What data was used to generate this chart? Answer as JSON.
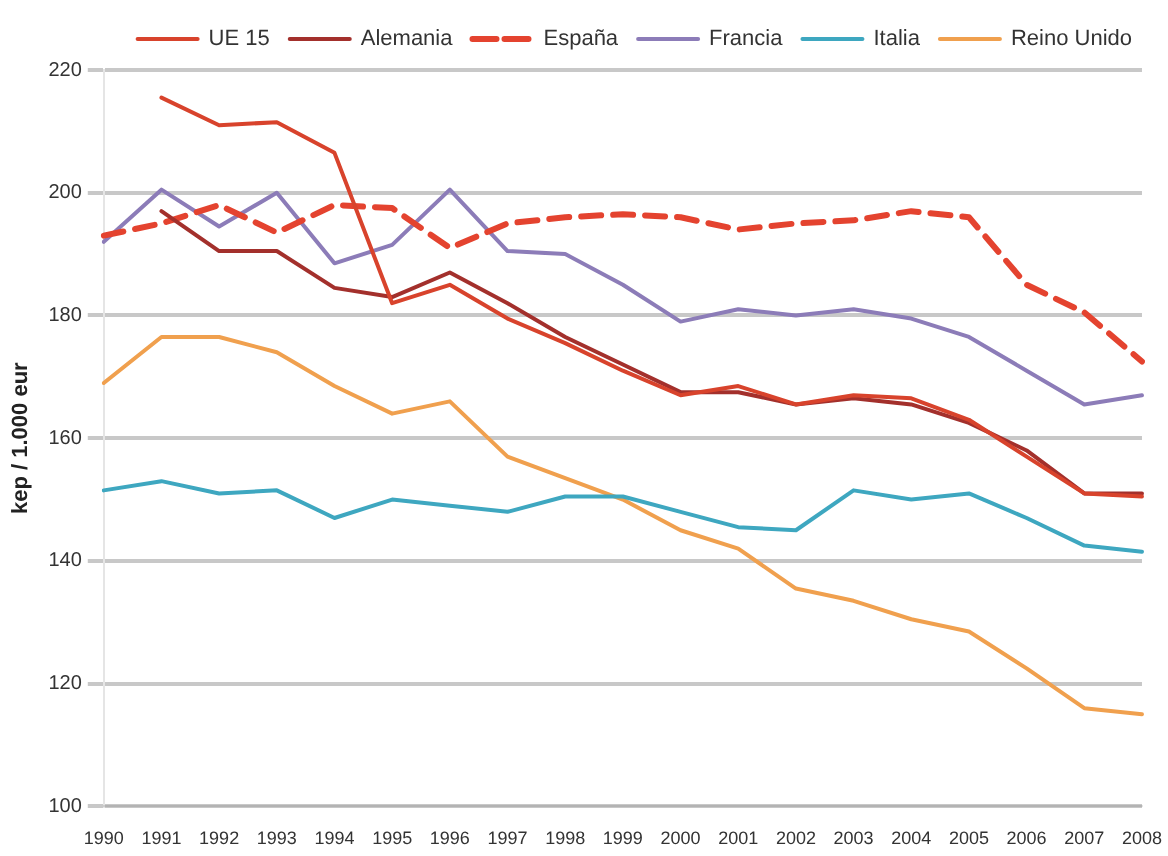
{
  "chart_data": {
    "type": "line",
    "ylabel": "kep / 1.000 eur",
    "categories": [
      "1990",
      "1991",
      "1992",
      "1993",
      "1994",
      "1995",
      "1996",
      "1997",
      "1998",
      "1999",
      "2000",
      "2001",
      "2002",
      "2003",
      "2004",
      "2005",
      "2006",
      "2007",
      "2008"
    ],
    "series": [
      {
        "name": "UE 15",
        "color": "#d8432c",
        "line_style": "solid",
        "values": [
          null,
          215.5,
          211,
          211.5,
          206.5,
          182,
          185,
          179.5,
          175.5,
          171,
          167,
          168.5,
          165.5,
          167,
          166.5,
          163,
          157,
          151,
          150.5
        ]
      },
      {
        "name": "Alemania",
        "color": "#a3302c",
        "line_style": "solid",
        "values": [
          null,
          197,
          190.5,
          190.5,
          184.5,
          183,
          187,
          182,
          176.5,
          172,
          167.5,
          167.5,
          165.5,
          166.5,
          165.5,
          162.5,
          158,
          151,
          151
        ]
      },
      {
        "name": "España",
        "color": "#e4432f",
        "line_style": "dashed",
        "values": [
          193,
          195,
          198,
          193.5,
          198,
          197.5,
          191,
          195,
          196,
          196.5,
          196,
          194,
          195,
          195.5,
          197,
          196,
          185,
          180.5,
          172.5
        ]
      },
      {
        "name": "Francia",
        "color": "#8c7cb8",
        "line_style": "solid",
        "values": [
          192,
          200.5,
          194.5,
          200,
          188.5,
          191.5,
          200.5,
          190.5,
          190,
          185,
          179,
          181,
          180,
          181,
          179.5,
          176.5,
          171,
          165.5,
          167
        ]
      },
      {
        "name": "Italia",
        "color": "#3ea7c0",
        "line_style": "solid",
        "values": [
          151.5,
          153,
          151,
          151.5,
          147,
          150,
          149,
          148,
          150.5,
          150.5,
          148,
          145.5,
          145,
          151.5,
          150,
          151,
          147,
          142.5,
          141.5
        ]
      },
      {
        "name": "Reino Unido",
        "color": "#f0a04e",
        "line_style": "solid",
        "values": [
          169,
          176.5,
          176.5,
          174,
          168.5,
          164,
          166,
          157,
          153.5,
          150,
          145,
          142,
          135.5,
          133.5,
          130.5,
          128.5,
          122.5,
          116,
          115
        ]
      }
    ],
    "ylim": [
      100,
      220
    ],
    "yticks": [
      100,
      120,
      140,
      160,
      180,
      200,
      220
    ],
    "grid": "y",
    "legend": "top right",
    "marker": "none"
  }
}
